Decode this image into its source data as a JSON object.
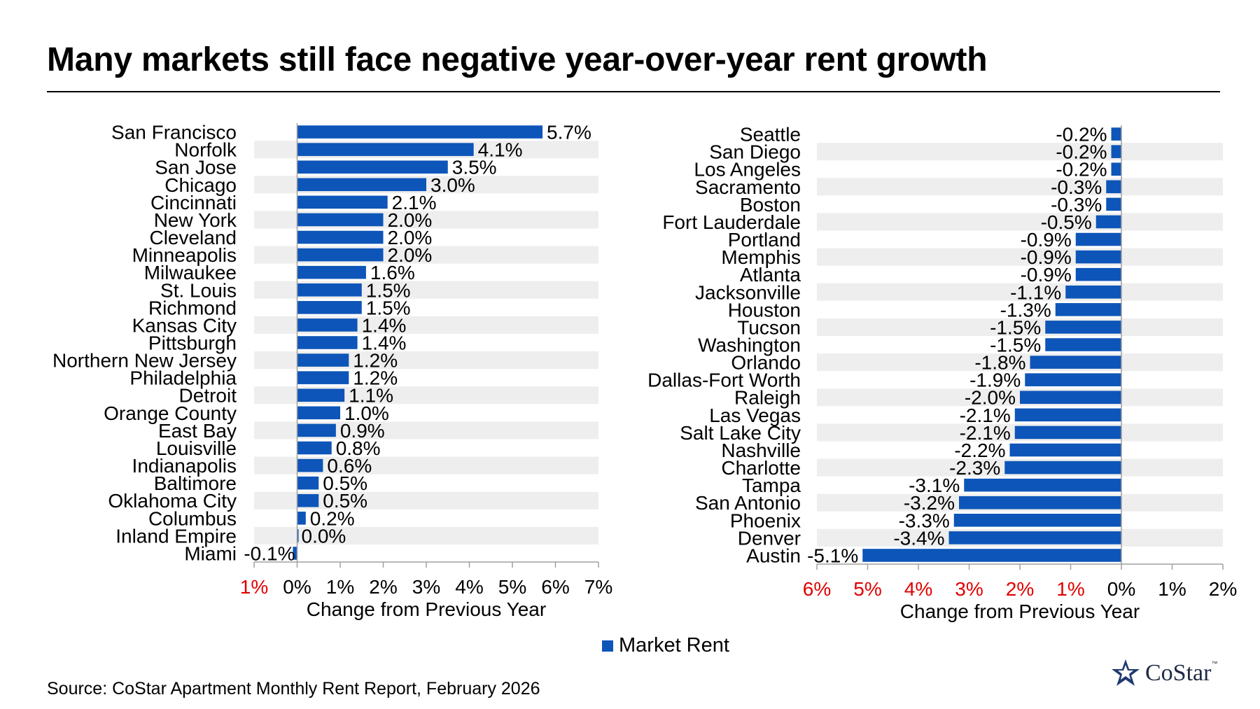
{
  "title": "Many markets still face negative year-over-year rent growth",
  "source": "Source: CoStar Apartment Monthly Rent Report, February 2026",
  "logo_text": "CoStar",
  "logo_tm": "™",
  "colors": {
    "bar": "#0d55b8",
    "band": "#eeeeee",
    "negative_tick": "#e00000",
    "axis": "#a0a0a0"
  },
  "legend": {
    "label": "Market Rent"
  },
  "chart_data": [
    {
      "type": "bar",
      "orientation": "horizontal",
      "xlabel": "Change from Previous Year",
      "xlim": [
        -1,
        7
      ],
      "ticks": [
        {
          "value": -1,
          "label": "1%"
        },
        {
          "value": 0,
          "label": "0%"
        },
        {
          "value": 1,
          "label": "1%"
        },
        {
          "value": 2,
          "label": "2%"
        },
        {
          "value": 3,
          "label": "3%"
        },
        {
          "value": 4,
          "label": "4%"
        },
        {
          "value": 5,
          "label": "5%"
        },
        {
          "value": 6,
          "label": "6%"
        },
        {
          "value": 7,
          "label": "7%"
        }
      ],
      "series": [
        {
          "name": "Market Rent"
        }
      ],
      "categories": [
        "San Francisco",
        "Norfolk",
        "San Jose",
        "Chicago",
        "Cincinnati",
        "New York",
        "Cleveland",
        "Minneapolis",
        "Milwaukee",
        "St. Louis",
        "Richmond",
        "Kansas City",
        "Pittsburgh",
        "Northern New Jersey",
        "Philadelphia",
        "Detroit",
        "Orange County",
        "East Bay",
        "Louisville",
        "Indianapolis",
        "Baltimore",
        "Oklahoma City",
        "Columbus",
        "Inland Empire",
        "Miami"
      ],
      "values": [
        5.7,
        4.1,
        3.5,
        3.0,
        2.1,
        2.0,
        2.0,
        2.0,
        1.6,
        1.5,
        1.5,
        1.4,
        1.4,
        1.2,
        1.2,
        1.1,
        1.0,
        0.9,
        0.8,
        0.6,
        0.5,
        0.5,
        0.2,
        0.0,
        -0.1
      ],
      "value_labels": [
        "5.7%",
        "4.1%",
        "3.5%",
        "3.0%",
        "2.1%",
        "2.0%",
        "2.0%",
        "2.0%",
        "1.6%",
        "1.5%",
        "1.5%",
        "1.4%",
        "1.4%",
        "1.2%",
        "1.2%",
        "1.1%",
        "1.0%",
        "0.9%",
        "0.8%",
        "0.6%",
        "0.5%",
        "0.5%",
        "0.2%",
        "0.0%",
        "-0.1%"
      ]
    },
    {
      "type": "bar",
      "orientation": "horizontal",
      "xlabel": "Change from Previous Year",
      "xlim": [
        -6,
        2
      ],
      "ticks": [
        {
          "value": -6,
          "label": "6%"
        },
        {
          "value": -5,
          "label": "5%"
        },
        {
          "value": -4,
          "label": "4%"
        },
        {
          "value": -3,
          "label": "3%"
        },
        {
          "value": -2,
          "label": "2%"
        },
        {
          "value": -1,
          "label": "1%"
        },
        {
          "value": 0,
          "label": "0%"
        },
        {
          "value": 1,
          "label": "1%"
        },
        {
          "value": 2,
          "label": "2%"
        }
      ],
      "series": [
        {
          "name": "Market Rent"
        }
      ],
      "categories": [
        "Seattle",
        "San Diego",
        "Los Angeles",
        "Sacramento",
        "Boston",
        "Fort Lauderdale",
        "Portland",
        "Memphis",
        "Atlanta",
        "Jacksonville",
        "Houston",
        "Tucson",
        "Washington",
        "Orlando",
        "Dallas-Fort Worth",
        "Raleigh",
        "Las Vegas",
        "Salt Lake City",
        "Nashville",
        "Charlotte",
        "Tampa",
        "San Antonio",
        "Phoenix",
        "Denver",
        "Austin"
      ],
      "values": [
        -0.2,
        -0.2,
        -0.2,
        -0.3,
        -0.3,
        -0.5,
        -0.9,
        -0.9,
        -0.9,
        -1.1,
        -1.3,
        -1.5,
        -1.5,
        -1.8,
        -1.9,
        -2.0,
        -2.1,
        -2.1,
        -2.2,
        -2.3,
        -3.1,
        -3.2,
        -3.3,
        -3.4,
        -5.1
      ],
      "value_labels": [
        "-0.2%",
        "-0.2%",
        "-0.2%",
        "-0.3%",
        "-0.3%",
        "-0.5%",
        "-0.9%",
        "-0.9%",
        "-0.9%",
        "-1.1%",
        "-1.3%",
        "-1.5%",
        "-1.5%",
        "-1.8%",
        "-1.9%",
        "-2.0%",
        "-2.1%",
        "-2.1%",
        "-2.2%",
        "-2.3%",
        "-3.1%",
        "-3.2%",
        "-3.3%",
        "-3.4%",
        "-5.1%"
      ]
    }
  ]
}
